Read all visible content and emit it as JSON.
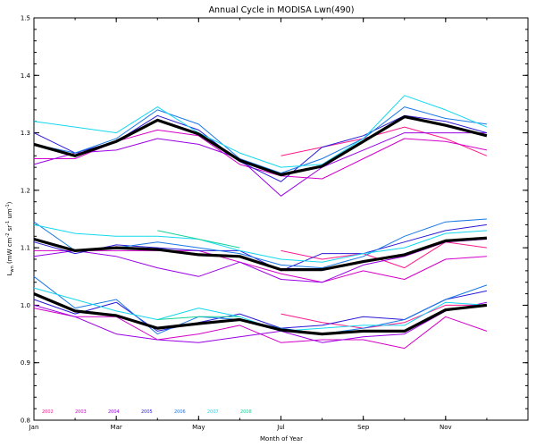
{
  "chart_data": {
    "type": "line",
    "title": "Annual Cycle in MODISA Lwn(490)",
    "xlabel": "Month of Year",
    "ylabel": "L",
    "ylabel_sub": "wn",
    "ylabel_units": "(mW cm",
    "ylabel_units_rest": "sr",
    "ylabel_units_end": "um",
    "x_ticks": [
      {
        "value": 1,
        "label": "Jan"
      },
      {
        "value": 3,
        "label": "Mar"
      },
      {
        "value": 5,
        "label": "May"
      },
      {
        "value": 7,
        "label": "Jul"
      },
      {
        "value": 9,
        "label": "Sep"
      },
      {
        "value": 11,
        "label": "Nov"
      }
    ],
    "y_ticks": [
      {
        "value": 0.8,
        "label": "0.8"
      },
      {
        "value": 0.9,
        "label": "0.9"
      },
      {
        "value": 1.0,
        "label": "1.0"
      },
      {
        "value": 1.1,
        "label": "1.1"
      },
      {
        "value": 1.2,
        "label": "1.2"
      },
      {
        "value": 1.3,
        "label": "1.3"
      },
      {
        "value": 1.4,
        "label": "1.4"
      },
      {
        "value": 1.5,
        "label": "1.5"
      }
    ],
    "xlim": [
      1,
      13
    ],
    "ylim": [
      0.8,
      1.5
    ],
    "grid": false,
    "legend_placement": "bottom-left",
    "x": [
      1,
      2,
      3,
      4,
      5,
      6,
      7,
      8,
      9,
      10,
      11,
      12
    ],
    "series": [
      {
        "name": "2002",
        "color": "#ff1a8c",
        "groups": [
          [
            null,
            null,
            null,
            null,
            null,
            null,
            1.26,
            1.275,
            1.29,
            1.31,
            1.29,
            1.26
          ],
          [
            null,
            null,
            null,
            null,
            null,
            null,
            1.095,
            1.08,
            1.09,
            1.065,
            1.11,
            1.1
          ],
          [
            null,
            null,
            null,
            null,
            null,
            null,
            0.985,
            0.97,
            0.96,
            0.97,
            1.0,
            1.0
          ]
        ]
      },
      {
        "name": "2003",
        "color": "#d400c8",
        "groups": [
          [
            1.255,
            1.255,
            1.285,
            1.305,
            1.295,
            1.245,
            1.225,
            1.22,
            1.255,
            1.29,
            1.285,
            1.27
          ],
          [
            1.095,
            1.095,
            1.095,
            1.095,
            1.095,
            1.075,
            1.055,
            1.04,
            1.06,
            1.045,
            1.08,
            1.085
          ],
          [
            0.995,
            0.98,
            0.98,
            0.94,
            0.95,
            0.965,
            0.935,
            0.94,
            0.94,
            0.925,
            0.98,
            0.955
          ]
        ]
      },
      {
        "name": "2004",
        "color": "#9a00e6",
        "groups": [
          [
            1.245,
            1.265,
            1.27,
            1.29,
            1.28,
            1.255,
            1.19,
            1.24,
            1.27,
            1.3,
            1.3,
            1.3
          ],
          [
            1.085,
            1.095,
            1.085,
            1.065,
            1.05,
            1.075,
            1.045,
            1.04,
            1.07,
            1.085,
            1.11,
            1.115
          ],
          [
            1.0,
            0.98,
            0.95,
            0.94,
            0.935,
            0.945,
            0.955,
            0.935,
            0.945,
            0.95,
            0.99,
            1.005
          ]
        ]
      },
      {
        "name": "2005",
        "color": "#2a1ad6",
        "groups": [
          [
            1.3,
            1.265,
            1.285,
            1.33,
            1.305,
            1.25,
            1.215,
            1.275,
            1.295,
            1.33,
            1.32,
            1.3
          ],
          [
            1.11,
            1.09,
            1.105,
            1.1,
            1.095,
            1.095,
            1.06,
            1.09,
            1.09,
            1.11,
            1.13,
            1.14
          ],
          [
            1.01,
            0.985,
            1.005,
            0.955,
            0.97,
            0.985,
            0.96,
            0.965,
            0.98,
            0.975,
            1.01,
            1.025
          ]
        ]
      },
      {
        "name": "2006",
        "color": "#1a78e6",
        "groups": [
          [
            1.28,
            1.265,
            1.29,
            1.34,
            1.315,
            1.255,
            1.23,
            1.255,
            1.29,
            1.345,
            1.325,
            1.315
          ],
          [
            1.145,
            1.095,
            1.1,
            1.11,
            1.1,
            1.09,
            1.07,
            1.065,
            1.085,
            1.12,
            1.145,
            1.15
          ],
          [
            1.05,
            0.995,
            1.01,
            0.95,
            0.98,
            0.975,
            0.96,
            0.95,
            0.96,
            0.975,
            1.01,
            1.035
          ]
        ]
      },
      {
        "name": "2007",
        "color": "#14d8ee",
        "groups": [
          [
            1.32,
            1.31,
            1.3,
            1.345,
            1.3,
            1.265,
            1.24,
            1.245,
            1.29,
            1.365,
            1.34,
            1.31
          ],
          [
            1.14,
            1.125,
            1.12,
            1.12,
            1.115,
            1.095,
            1.08,
            1.075,
            1.09,
            1.1,
            1.125,
            1.13
          ],
          [
            1.03,
            1.01,
            0.99,
            0.975,
            0.995,
            0.98,
            0.955,
            0.96,
            0.965,
            0.965,
            1.005,
            1.0
          ]
        ]
      },
      {
        "name": "2008",
        "color": "#18d29a",
        "groups": [
          [
            null,
            null,
            null,
            null,
            null,
            null,
            null,
            null,
            null,
            null,
            null,
            null
          ],
          [
            null,
            null,
            null,
            1.13,
            1.115,
            1.1,
            null,
            null,
            null,
            null,
            null,
            null
          ],
          [
            null,
            null,
            null,
            0.975,
            0.98,
            0.98,
            null,
            null,
            null,
            null,
            null,
            null
          ]
        ]
      },
      {
        "name": "",
        "color": "#000000",
        "bold": true,
        "groups": [
          [
            1.28,
            1.26,
            1.285,
            1.322,
            1.298,
            1.252,
            1.227,
            1.242,
            1.285,
            1.328,
            1.313,
            1.295
          ],
          [
            1.115,
            1.095,
            1.1,
            1.097,
            1.088,
            1.085,
            1.062,
            1.062,
            1.076,
            1.088,
            1.112,
            1.117
          ],
          [
            1.02,
            0.99,
            0.982,
            0.96,
            0.968,
            0.975,
            0.957,
            0.95,
            0.955,
            0.955,
            0.992,
            1.0
          ]
        ]
      }
    ]
  }
}
